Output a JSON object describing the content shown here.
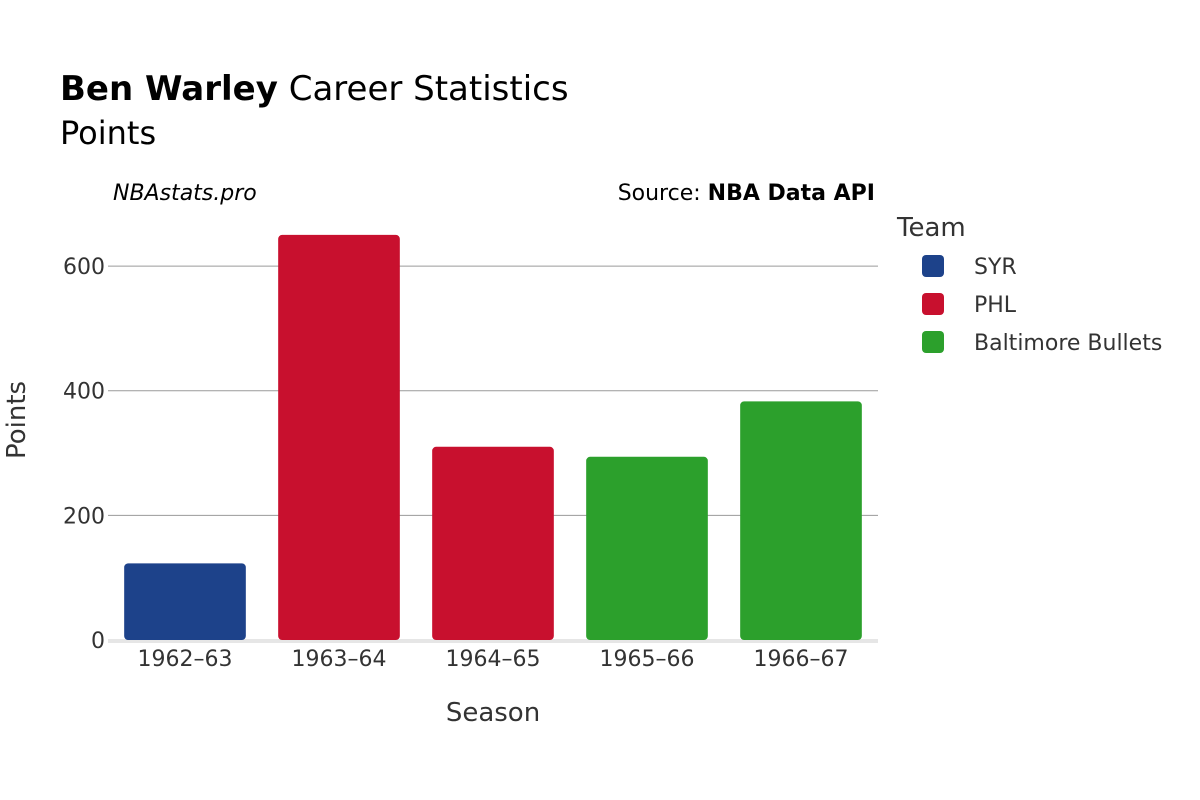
{
  "title": {
    "bold": "Ben Warley",
    "rest": " Career Statistics"
  },
  "subtitle": "Points",
  "brand": "NBAstats.pro",
  "source": {
    "prefix": "Source: ",
    "name": "NBA Data API"
  },
  "chart_data": {
    "type": "bar",
    "categories": [
      "1962–63",
      "1963–64",
      "1964–65",
      "1965–66",
      "1966–67"
    ],
    "values": [
      123,
      650,
      310,
      294,
      383
    ],
    "teams": [
      "SYR",
      "PHL",
      "PHL",
      "Baltimore Bullets",
      "Baltimore Bullets"
    ],
    "xlabel": "Season",
    "ylabel": "Points",
    "ylim": [
      0,
      690
    ],
    "yticks": [
      0,
      200,
      400,
      600
    ],
    "grid": true,
    "legend": {
      "title": "Team",
      "placement": "right",
      "items": [
        {
          "name": "SYR",
          "color": "#1d428a"
        },
        {
          "name": "PHL",
          "color": "#c8102e"
        },
        {
          "name": "Baltimore Bullets",
          "color": "#2ca02c"
        }
      ]
    }
  }
}
